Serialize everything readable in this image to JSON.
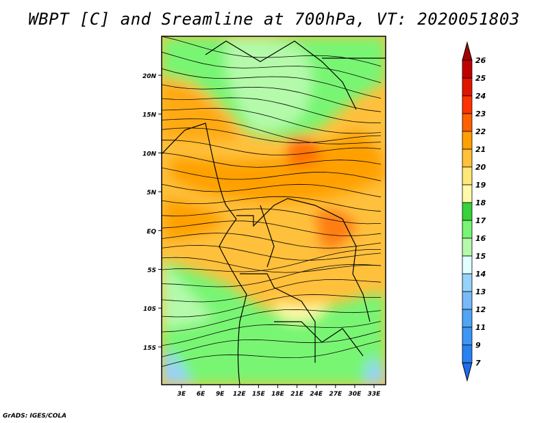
{
  "title": "WBPT [C] and Sreamline at 700hPa, VT: 2020051803",
  "credit": "GrADS: IGES/COLA",
  "map": {
    "lat_labels": [
      "20N",
      "15N",
      "10N",
      "5N",
      "EQ",
      "5S",
      "10S",
      "15S"
    ],
    "lon_labels": [
      "3E",
      "6E",
      "9E",
      "12E",
      "15E",
      "18E",
      "21E",
      "24E",
      "27E",
      "30E",
      "33E"
    ]
  },
  "colorbar": {
    "labels": [
      "26",
      "25",
      "24",
      "23",
      "22",
      "21",
      "20",
      "19",
      "18",
      "17",
      "16",
      "15",
      "14",
      "13",
      "12",
      "11",
      "9",
      "7"
    ],
    "colors": [
      "#c00000",
      "#e11400",
      "#ff3200",
      "#ff6000",
      "#ffa000",
      "#ffc03c",
      "#ffe878",
      "#fffaaa",
      "#37d23c",
      "#78f573",
      "#b4faaa",
      "#e1ffff",
      "#96d2fa",
      "#78b9fa",
      "#50a5f5",
      "#3c96f5",
      "#2882f0",
      "#1e6eeb"
    ],
    "above_color": "#a50000",
    "below_color": "#1e6eeb"
  }
}
